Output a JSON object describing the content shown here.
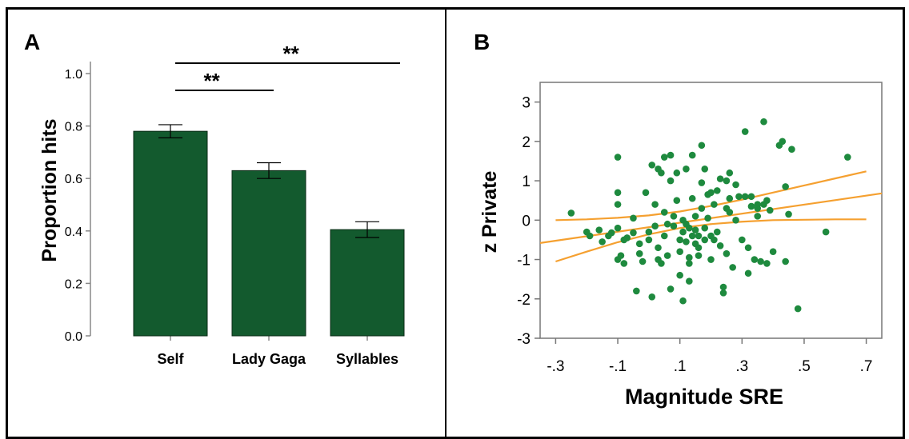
{
  "chart_data": [
    {
      "panel_label": "A",
      "type": "bar",
      "categories": [
        "Self",
        "Lady Gaga",
        "Syllables"
      ],
      "values": [
        0.78,
        0.63,
        0.405
      ],
      "errors": [
        0.025,
        0.03,
        0.03
      ],
      "ylabel": "Proportion hits",
      "xlabel": "",
      "ylim": [
        0,
        1.0
      ],
      "yticks": [
        "0.0",
        "0.2",
        "0.4",
        "0.6",
        "0.8",
        "1.0"
      ],
      "significance": [
        {
          "from": "Self",
          "to": "Lady Gaga",
          "label": "**"
        },
        {
          "from": "Self",
          "to": "Syllables",
          "label": "**"
        }
      ],
      "bar_color": "#135a2e"
    },
    {
      "panel_label": "B",
      "type": "scatter",
      "xlabel": "Magnitude SRE",
      "ylabel": "z Private",
      "xlim": [
        -0.35,
        0.75
      ],
      "ylim": [
        -3,
        3.5
      ],
      "xticks": [
        "-.3",
        "-.1",
        ".1",
        ".3",
        ".5",
        ".7"
      ],
      "yticks": [
        "-3",
        "-2",
        "-1",
        "0",
        "1",
        "2",
        "3"
      ],
      "point_color": "#1e8a3e",
      "line_color": "#f5a030",
      "fit_line": {
        "x": [
          -0.35,
          0.75
        ],
        "y": [
          -0.58,
          0.68
        ]
      },
      "ci_upper": {
        "x": [
          -0.3,
          -0.2,
          -0.1,
          0.0,
          0.1,
          0.2,
          0.3,
          0.4,
          0.5,
          0.6,
          0.7
        ],
        "y": [
          0.0,
          0.02,
          0.06,
          0.12,
          0.22,
          0.36,
          0.52,
          0.7,
          0.88,
          1.06,
          1.24
        ]
      },
      "ci_lower": {
        "x": [
          -0.3,
          -0.2,
          -0.1,
          0.0,
          0.1,
          0.2,
          0.3,
          0.4,
          0.5,
          0.6,
          0.7
        ],
        "y": [
          -1.05,
          -0.8,
          -0.56,
          -0.36,
          -0.2,
          -0.1,
          -0.04,
          0.0,
          0.01,
          0.02,
          0.02
        ]
      },
      "points": [
        [
          -0.25,
          0.18
        ],
        [
          -0.2,
          -0.3
        ],
        [
          -0.19,
          -0.4
        ],
        [
          -0.16,
          -0.25
        ],
        [
          -0.15,
          -0.55
        ],
        [
          -0.13,
          -0.4
        ],
        [
          -0.12,
          -0.32
        ],
        [
          -0.1,
          1.6
        ],
        [
          -0.1,
          0.7
        ],
        [
          -0.1,
          0.4
        ],
        [
          -0.1,
          -0.2
        ],
        [
          -0.1,
          -1.0
        ],
        [
          -0.09,
          -0.9
        ],
        [
          -0.08,
          -0.5
        ],
        [
          -0.08,
          -1.1
        ],
        [
          -0.07,
          -0.45
        ],
        [
          -0.05,
          -0.32
        ],
        [
          -0.05,
          0.05
        ],
        [
          -0.04,
          -1.8
        ],
        [
          -0.03,
          -0.6
        ],
        [
          -0.03,
          -0.85
        ],
        [
          -0.02,
          -1.05
        ],
        [
          -0.01,
          0.7
        ],
        [
          0.0,
          -0.3
        ],
        [
          0.0,
          -0.5
        ],
        [
          0.01,
          -1.95
        ],
        [
          0.01,
          1.4
        ],
        [
          0.02,
          0.4
        ],
        [
          0.02,
          -0.15
        ],
        [
          0.03,
          -1.0
        ],
        [
          0.03,
          -0.7
        ],
        [
          0.03,
          1.3
        ],
        [
          0.04,
          -1.1
        ],
        [
          0.04,
          1.2
        ],
        [
          0.05,
          1.6
        ],
        [
          0.05,
          0.2
        ],
        [
          0.05,
          -0.4
        ],
        [
          0.06,
          -0.1
        ],
        [
          0.06,
          -0.9
        ],
        [
          0.07,
          1.65
        ],
        [
          0.07,
          1.0
        ],
        [
          0.07,
          -1.75
        ],
        [
          0.08,
          0.1
        ],
        [
          0.08,
          -0.15
        ],
        [
          0.09,
          1.2
        ],
        [
          0.09,
          0.5
        ],
        [
          0.1,
          -0.5
        ],
        [
          0.1,
          -1.4
        ],
        [
          0.1,
          -0.8
        ],
        [
          0.11,
          0.0
        ],
        [
          0.11,
          -2.05
        ],
        [
          0.11,
          -0.3
        ],
        [
          0.12,
          -0.55
        ],
        [
          0.12,
          1.3
        ],
        [
          0.12,
          -0.1
        ],
        [
          0.13,
          -0.2
        ],
        [
          0.13,
          -1.1
        ],
        [
          0.13,
          -0.95
        ],
        [
          0.13,
          -1.55
        ],
        [
          0.14,
          1.65
        ],
        [
          0.14,
          0.55
        ],
        [
          0.14,
          -0.4
        ],
        [
          0.15,
          0.1
        ],
        [
          0.15,
          -0.25
        ],
        [
          0.15,
          -0.6
        ],
        [
          0.16,
          -0.4
        ],
        [
          0.16,
          -0.9
        ],
        [
          0.16,
          -0.7
        ],
        [
          0.17,
          1.9
        ],
        [
          0.17,
          0.3
        ],
        [
          0.17,
          0.95
        ],
        [
          0.18,
          1.3
        ],
        [
          0.18,
          -0.5
        ],
        [
          0.18,
          -0.2
        ],
        [
          0.19,
          0.65
        ],
        [
          0.19,
          0.05
        ],
        [
          0.2,
          -0.4
        ],
        [
          0.2,
          -1.0
        ],
        [
          0.2,
          0.7
        ],
        [
          0.21,
          -0.5
        ],
        [
          0.21,
          0.4
        ],
        [
          0.22,
          0.75
        ],
        [
          0.22,
          -0.3
        ],
        [
          0.23,
          1.05
        ],
        [
          0.23,
          -0.65
        ],
        [
          0.24,
          -1.7
        ],
        [
          0.24,
          -1.85
        ],
        [
          0.25,
          0.3
        ],
        [
          0.25,
          1.0
        ],
        [
          0.25,
          -0.85
        ],
        [
          0.26,
          0.55
        ],
        [
          0.26,
          1.2
        ],
        [
          0.26,
          0.2
        ],
        [
          0.27,
          -1.2
        ],
        [
          0.28,
          0.0
        ],
        [
          0.28,
          0.9
        ],
        [
          0.29,
          0.6
        ],
        [
          0.3,
          -0.5
        ],
        [
          0.31,
          0.6
        ],
        [
          0.31,
          2.25
        ],
        [
          0.32,
          -0.7
        ],
        [
          0.32,
          -1.35
        ],
        [
          0.33,
          0.6
        ],
        [
          0.33,
          0.35
        ],
        [
          0.34,
          -1.0
        ],
        [
          0.35,
          0.1
        ],
        [
          0.35,
          0.4
        ],
        [
          0.35,
          0.3
        ],
        [
          0.36,
          -1.05
        ],
        [
          0.37,
          2.5
        ],
        [
          0.37,
          0.4
        ],
        [
          0.38,
          -1.1
        ],
        [
          0.38,
          0.5
        ],
        [
          0.39,
          0.25
        ],
        [
          0.4,
          -0.8
        ],
        [
          0.42,
          1.9
        ],
        [
          0.43,
          2.0
        ],
        [
          0.44,
          0.85
        ],
        [
          0.44,
          -1.05
        ],
        [
          0.45,
          0.15
        ],
        [
          0.46,
          1.8
        ],
        [
          0.48,
          -2.25
        ],
        [
          0.57,
          -0.3
        ],
        [
          0.64,
          1.6
        ]
      ]
    }
  ]
}
